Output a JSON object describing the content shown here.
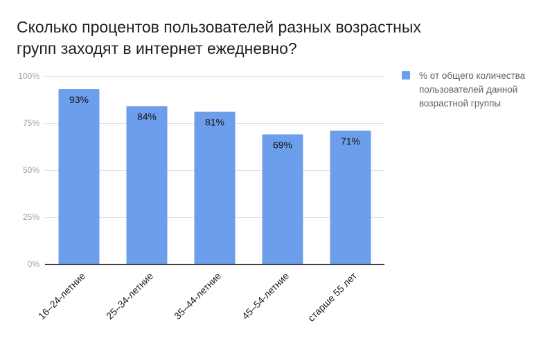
{
  "chart_data": {
    "type": "bar",
    "title": "Сколько процентов пользователей разных возрастных групп заходят в интернет ежедневно?",
    "categories": [
      "16–24-летние",
      "25–34-летние",
      "35–44-летние",
      "45–54-летние",
      "старше 55 лет"
    ],
    "series": [
      {
        "name": "% от общего количества пользователей данной возрастной группы",
        "values": [
          93,
          84,
          81,
          69,
          71
        ],
        "data_labels": [
          "93%",
          "84%",
          "81%",
          "69%",
          "71%"
        ],
        "color": "#6d9eeb"
      }
    ],
    "ylim": [
      0,
      100
    ],
    "y_ticks": [
      0,
      25,
      50,
      75,
      100
    ],
    "y_tick_labels": [
      "0%",
      "25%",
      "50%",
      "75%",
      "100%"
    ],
    "grid": true,
    "legend_position": "right",
    "xlabel": "",
    "ylabel": ""
  }
}
